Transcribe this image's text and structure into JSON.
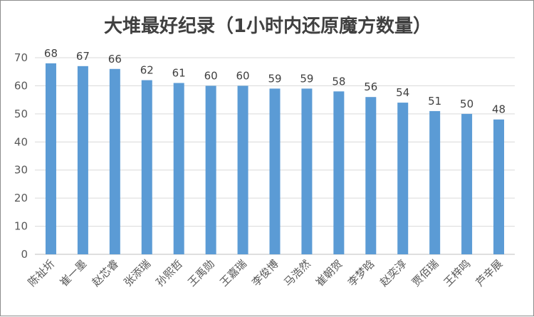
{
  "chart_data": {
    "type": "bar",
    "title": "大堆最好纪录（1小时内还原魔方数量）",
    "categories": [
      "陈祉圻",
      "崔一墨",
      "赵芯睿",
      "张添瑞",
      "孙熙哲",
      "王禹勋",
      "王嘉瑞",
      "李俊博",
      "马浩然",
      "崔朝贺",
      "李梦晗",
      "赵奕淳",
      "贾佰瑞",
      "王梓鸣",
      "芦辛展"
    ],
    "values": [
      68,
      67,
      66,
      62,
      61,
      60,
      60,
      59,
      59,
      58,
      56,
      54,
      51,
      50,
      48
    ],
    "yticks": [
      "0",
      "10",
      "20",
      "30",
      "40",
      "50",
      "60",
      "70"
    ],
    "ylim": [
      0,
      70
    ],
    "grid": true,
    "legend": "none",
    "bar_color": "#5b9bd5"
  }
}
